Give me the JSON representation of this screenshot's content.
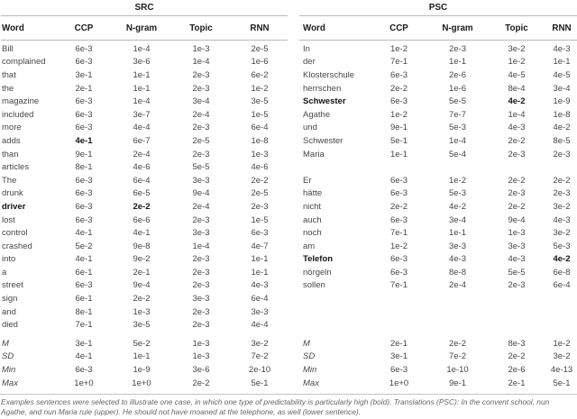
{
  "tables": [
    {
      "title": "SRC",
      "columns": [
        "Word",
        "CCP",
        "N-gram",
        "Topic",
        "RNN"
      ],
      "rows": [
        {
          "word": "Bill",
          "values": [
            "6e-3",
            "1e-4",
            "1e-3",
            "2e-5"
          ]
        },
        {
          "word": "complained",
          "values": [
            "6e-3",
            "3e-6",
            "1e-4",
            "1e-6"
          ]
        },
        {
          "word": "that",
          "values": [
            "3e-1",
            "1e-1",
            "2e-3",
            "6e-2"
          ]
        },
        {
          "word": "the",
          "values": [
            "2e-1",
            "1e-1",
            "2e-3",
            "1e-2"
          ]
        },
        {
          "word": "magazine",
          "values": [
            "6e-3",
            "1e-4",
            "3e-4",
            "3e-5"
          ]
        },
        {
          "word": "included",
          "values": [
            "6e-3",
            "3e-7",
            "2e-4",
            "1e-5"
          ]
        },
        {
          "word": "more",
          "values": [
            "6e-3",
            "4e-4",
            "2e-3",
            "6e-4"
          ]
        },
        {
          "word": "adds",
          "values": [
            "4e-1",
            "6e-7",
            "2e-5",
            "1e-8"
          ],
          "bold_value_index": 0
        },
        {
          "word": "than",
          "values": [
            "9e-1",
            "2e-4",
            "2e-3",
            "1e-3"
          ]
        },
        {
          "word": "articles",
          "values": [
            "8e-1",
            "4e-6",
            "5e-5",
            "4e-6"
          ]
        },
        {
          "word": "The",
          "values": [
            "6e-3",
            "6e-4",
            "3e-3",
            "2e-2"
          ]
        },
        {
          "word": "drunk",
          "values": [
            "6e-3",
            "6e-5",
            "9e-4",
            "2e-5"
          ]
        },
        {
          "word": "driver",
          "bold_word": true,
          "values": [
            "6e-3",
            "2e-2",
            "2e-4",
            "2e-3"
          ],
          "bold_value_index": 1
        },
        {
          "word": "lost",
          "values": [
            "6e-3",
            "6e-6",
            "2e-3",
            "1e-5"
          ]
        },
        {
          "word": "control",
          "values": [
            "4e-1",
            "4e-1",
            "3e-3",
            "6e-3"
          ]
        },
        {
          "word": "crashed",
          "values": [
            "5e-2",
            "9e-8",
            "1e-4",
            "4e-7"
          ]
        },
        {
          "word": "into",
          "values": [
            "4e-1",
            "9e-2",
            "2e-3",
            "1e-1"
          ]
        },
        {
          "word": "a",
          "values": [
            "6e-1",
            "2e-1",
            "2e-3",
            "1e-1"
          ]
        },
        {
          "word": "street",
          "values": [
            "6e-3",
            "9e-4",
            "2e-3",
            "4e-3"
          ]
        },
        {
          "word": "sign",
          "values": [
            "6e-1",
            "2e-2",
            "3e-3",
            "6e-4"
          ]
        },
        {
          "word": "and",
          "values": [
            "8e-1",
            "1e-3",
            "2e-3",
            "3e-3"
          ]
        },
        {
          "word": "died",
          "values": [
            "7e-1",
            "3e-5",
            "2e-3",
            "4e-4"
          ]
        }
      ],
      "summary": [
        {
          "word": "M",
          "values": [
            "3e-1",
            "5e-2",
            "1e-3",
            "3e-2"
          ]
        },
        {
          "word": "SD",
          "values": [
            "4e-1",
            "1e-1",
            "1e-3",
            "7e-2"
          ]
        },
        {
          "word": "Min",
          "values": [
            "6e-3",
            "1e-9",
            "3e-6",
            "2e-10"
          ]
        },
        {
          "word": "Max",
          "values": [
            "1e+0",
            "1e+0",
            "2e-2",
            "5e-1"
          ]
        }
      ]
    },
    {
      "title": "PSC",
      "columns": [
        "Word",
        "CCP",
        "N-gram",
        "Topic",
        "RNN"
      ],
      "rows": [
        {
          "word": "In",
          "values": [
            "1e-2",
            "2e-3",
            "3e-2",
            "4e-3"
          ]
        },
        {
          "word": "der",
          "values": [
            "7e-1",
            "1e-1",
            "1e-2",
            "1e-1"
          ]
        },
        {
          "word": "Klosterschule",
          "values": [
            "6e-3",
            "2e-6",
            "4e-5",
            "4e-5"
          ]
        },
        {
          "word": "herrschen",
          "values": [
            "2e-2",
            "1e-6",
            "8e-4",
            "3e-4"
          ]
        },
        {
          "word": "Schwester",
          "bold_word": true,
          "values": [
            "6e-3",
            "5e-5",
            "4e-2",
            "1e-9"
          ],
          "bold_value_index": 2
        },
        {
          "word": "Agathe",
          "values": [
            "1e-2",
            "7e-7",
            "1e-4",
            "1e-8"
          ]
        },
        {
          "word": "und",
          "values": [
            "9e-1",
            "5e-3",
            "4e-3",
            "4e-2"
          ]
        },
        {
          "word": "Schwester",
          "values": [
            "5e-1",
            "1e-4",
            "2e-2",
            "8e-5"
          ]
        },
        {
          "word": "Maria",
          "values": [
            "1e-1",
            "5e-4",
            "2e-3",
            "2e-3"
          ]
        },
        {
          "blank": true
        },
        {
          "word": "Er",
          "values": [
            "6e-3",
            "1e-2",
            "2e-2",
            "2e-2"
          ]
        },
        {
          "word": "hätte",
          "values": [
            "6e-3",
            "5e-3",
            "2e-3",
            "2e-3"
          ]
        },
        {
          "word": "nicht",
          "values": [
            "2e-2",
            "4e-2",
            "2e-2",
            "3e-2"
          ]
        },
        {
          "word": "auch",
          "values": [
            "6e-3",
            "3e-4",
            "9e-4",
            "4e-3"
          ]
        },
        {
          "word": "noch",
          "values": [
            "7e-1",
            "1e-1",
            "1e-3",
            "3e-2"
          ]
        },
        {
          "word": "am",
          "values": [
            "1e-2",
            "3e-3",
            "3e-3",
            "5e-3"
          ]
        },
        {
          "word": "Telefon",
          "bold_word": true,
          "values": [
            "6e-3",
            "4e-3",
            "4e-3",
            "4e-2"
          ],
          "bold_value_index": 3
        },
        {
          "word": "nörgeln",
          "values": [
            "6e-3",
            "8e-8",
            "5e-5",
            "6e-8"
          ]
        },
        {
          "word": "sollen",
          "values": [
            "7e-1",
            "2e-4",
            "2e-3",
            "6e-4"
          ]
        },
        {
          "blank": true
        },
        {
          "blank": true
        },
        {
          "blank": true
        }
      ],
      "summary": [
        {
          "word": "M",
          "values": [
            "2e-1",
            "2e-2",
            "8e-3",
            "1e-2"
          ]
        },
        {
          "word": "SD",
          "values": [
            "3e-1",
            "7e-2",
            "2e-2",
            "3e-2"
          ]
        },
        {
          "word": "Min",
          "values": [
            "6e-3",
            "1e-10",
            "2e-6",
            "4e-13"
          ]
        },
        {
          "word": "Max",
          "values": [
            "1e+0",
            "9e-1",
            "2e-1",
            "5e-1"
          ]
        }
      ]
    }
  ],
  "caption": "Examples sentences were selected to illustrate one case, in which one type of predictability is particularly high (bold). Translations (PSC): In the convent school, nun Agathe, and nun Maria rule (upper). He should not have moaned at the telephone, as well (lower sentence)."
}
